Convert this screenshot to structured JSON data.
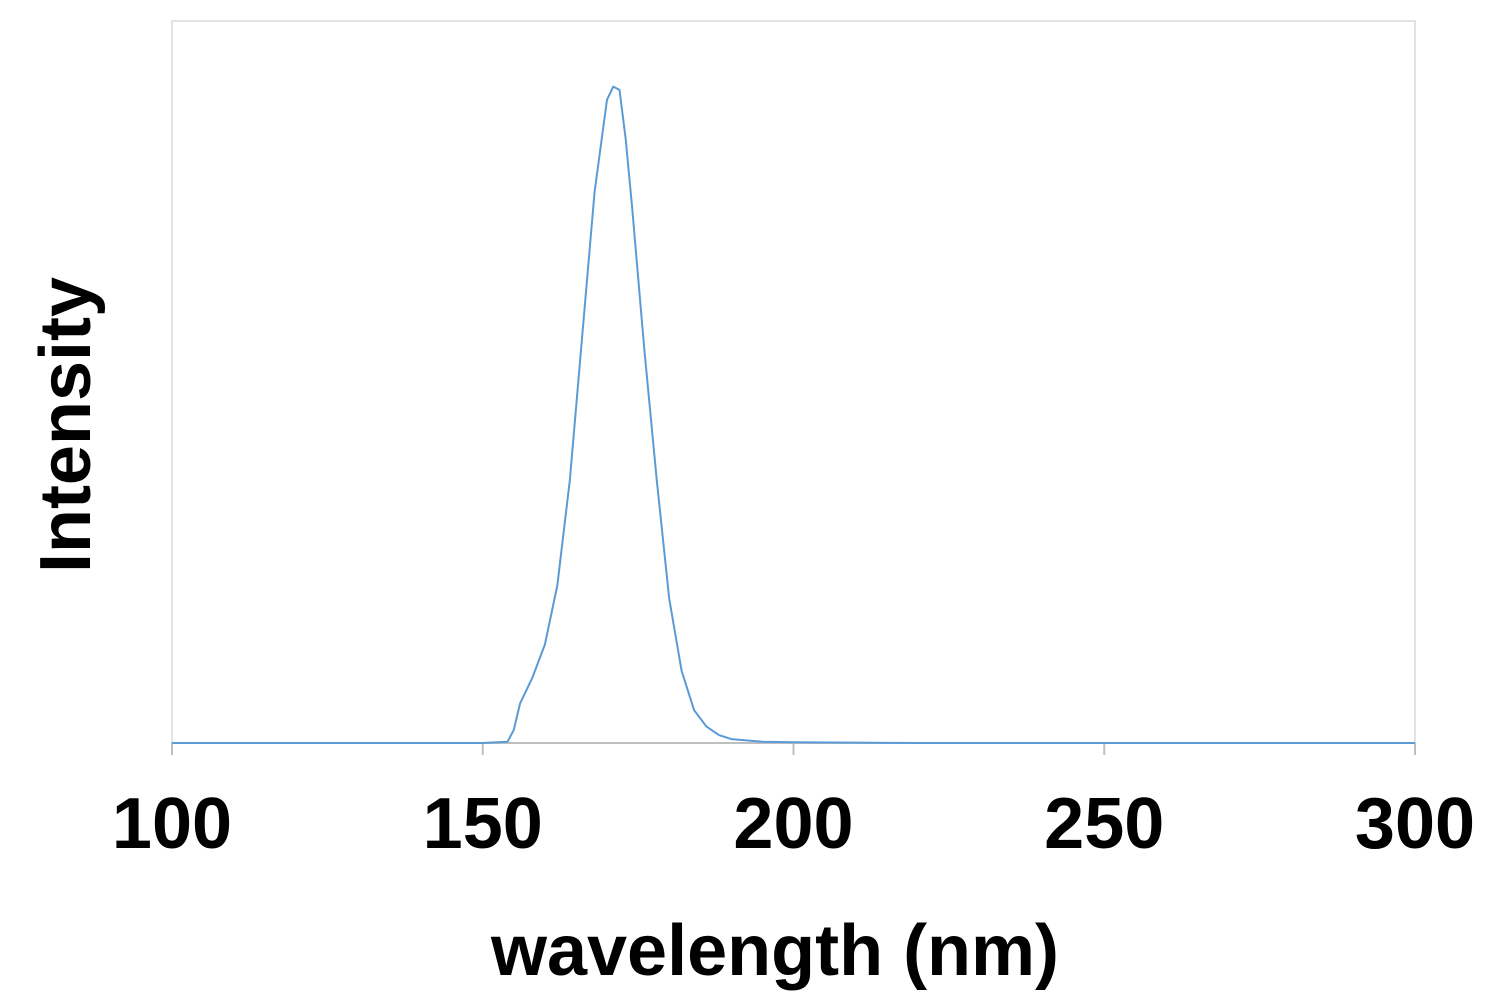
{
  "chart_data": {
    "type": "line",
    "title": "",
    "xlabel": "wavelength (nm)",
    "ylabel": "Intensity",
    "xlim": [
      100,
      300
    ],
    "ylim": [
      0,
      1.1
    ],
    "x_ticks": [
      100,
      150,
      200,
      250,
      300
    ],
    "x_tick_labels": [
      "100",
      "150",
      "200",
      "250",
      "300"
    ],
    "y_tick_labels_shown": false,
    "grid": false,
    "legend": "none",
    "colors": {
      "series": "#5b9bd5",
      "plot_border": "#d9d9d9",
      "axis": "#bfbfbf"
    },
    "series": [
      {
        "x": [
          100,
          120,
          140,
          150,
          154,
          155,
          156,
          158,
          160,
          162,
          164,
          166,
          168,
          170,
          171,
          172,
          173,
          174,
          176,
          178,
          180,
          182,
          184,
          186,
          188,
          190,
          195,
          200,
          220,
          250,
          280,
          300
        ],
        "y": [
          0,
          0,
          0,
          0,
          0.002,
          0.02,
          0.06,
          0.1,
          0.15,
          0.24,
          0.4,
          0.62,
          0.84,
          0.98,
          1.0,
          0.995,
          0.92,
          0.82,
          0.6,
          0.4,
          0.22,
          0.11,
          0.05,
          0.025,
          0.012,
          0.006,
          0.002,
          0.001,
          0,
          0,
          0,
          0
        ]
      }
    ]
  }
}
